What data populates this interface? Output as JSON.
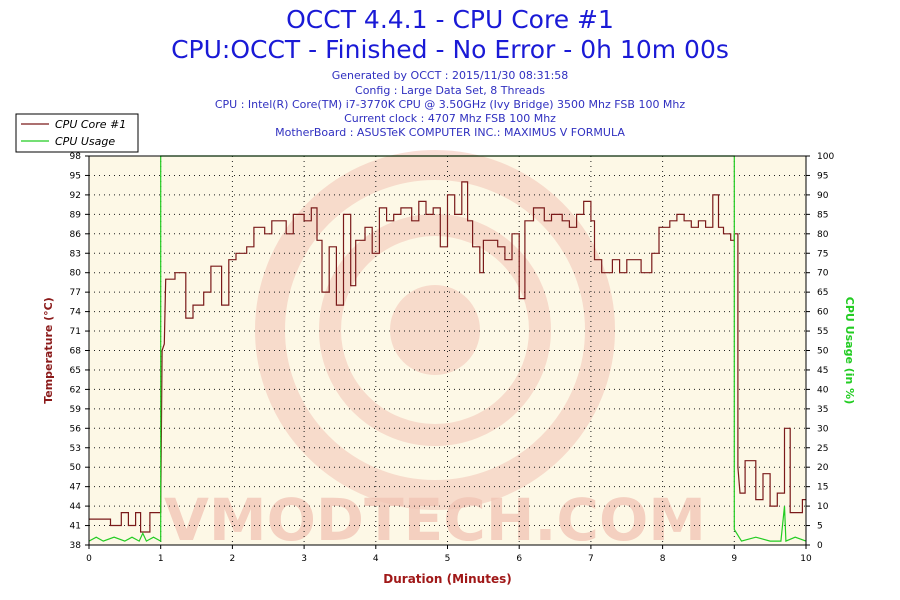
{
  "header": {
    "title": "OCCT 4.4.1 - CPU Core #1",
    "subtitle": "CPU:OCCT - Finished - No Error - 0h 10m 00s",
    "info": [
      "Generated by OCCT : 2015/11/30 08:31:58",
      "Config : Large Data Set, 8 Threads",
      "CPU : Intel(R) Core(TM) i7-3770K CPU @ 3.50GHz (Ivy Bridge) 3500 Mhz FSB 100 Mhz",
      "Current clock : 4707 Mhz FSB 100 Mhz",
      "MotherBoard : ASUSTeK COMPUTER INC.: MAXIMUS V FORMULA"
    ]
  },
  "watermark": "VMODTECH.COM",
  "colors": {
    "temperature": "#7a1a1a",
    "usage": "#22cc22",
    "plot_bg": "#fdf8e6",
    "grid": "#202020",
    "axis_label_left": "#8b1a1a",
    "axis_label_right": "#22cc22",
    "x_axis_label": "#a01818"
  },
  "chart_data": {
    "type": "line",
    "xlabel": "Duration (Minutes)",
    "ylabel": "Temperature (°C)",
    "ylabel_right": "CPU Usage (in %)",
    "xlim": [
      0,
      10
    ],
    "ylim": [
      38,
      98
    ],
    "ylim_right": [
      0,
      100
    ],
    "x_ticks": [
      0,
      1,
      2,
      3,
      4,
      5,
      6,
      7,
      8,
      9,
      10
    ],
    "y_ticks": [
      38,
      41,
      44,
      47,
      50,
      53,
      56,
      59,
      62,
      65,
      68,
      71,
      74,
      77,
      80,
      83,
      86,
      89,
      92,
      95,
      98
    ],
    "y_ticks_right": [
      0,
      5,
      10,
      15,
      20,
      25,
      30,
      35,
      40,
      45,
      50,
      55,
      60,
      65,
      70,
      75,
      80,
      85,
      90,
      95,
      100
    ],
    "grid": true,
    "legend_position": "top-left",
    "series": [
      {
        "name": "CPU Core #1",
        "axis": "left",
        "points": [
          [
            0,
            42
          ],
          [
            0.3,
            42
          ],
          [
            0.3,
            41
          ],
          [
            0.45,
            41
          ],
          [
            0.45,
            43
          ],
          [
            0.55,
            43
          ],
          [
            0.55,
            41
          ],
          [
            0.65,
            41
          ],
          [
            0.65,
            43
          ],
          [
            0.72,
            43
          ],
          [
            0.72,
            40
          ],
          [
            0.85,
            40
          ],
          [
            0.85,
            43
          ],
          [
            1.0,
            43
          ],
          [
            1.02,
            68
          ],
          [
            1.05,
            69
          ],
          [
            1.07,
            79
          ],
          [
            1.2,
            79
          ],
          [
            1.2,
            80
          ],
          [
            1.35,
            80
          ],
          [
            1.35,
            73
          ],
          [
            1.45,
            73
          ],
          [
            1.45,
            75
          ],
          [
            1.6,
            75
          ],
          [
            1.6,
            77
          ],
          [
            1.7,
            77
          ],
          [
            1.7,
            81
          ],
          [
            1.85,
            81
          ],
          [
            1.85,
            75
          ],
          [
            1.95,
            75
          ],
          [
            1.95,
            82
          ],
          [
            2.05,
            82
          ],
          [
            2.05,
            83
          ],
          [
            2.2,
            83
          ],
          [
            2.2,
            84
          ],
          [
            2.3,
            84
          ],
          [
            2.3,
            87
          ],
          [
            2.45,
            87
          ],
          [
            2.45,
            86
          ],
          [
            2.55,
            86
          ],
          [
            2.55,
            88
          ],
          [
            2.75,
            88
          ],
          [
            2.75,
            86
          ],
          [
            2.85,
            86
          ],
          [
            2.85,
            89
          ],
          [
            3.0,
            89
          ],
          [
            3.0,
            88
          ],
          [
            3.1,
            88
          ],
          [
            3.1,
            90
          ],
          [
            3.18,
            90
          ],
          [
            3.18,
            85
          ],
          [
            3.25,
            85
          ],
          [
            3.25,
            77
          ],
          [
            3.35,
            77
          ],
          [
            3.35,
            84
          ],
          [
            3.45,
            84
          ],
          [
            3.45,
            75
          ],
          [
            3.55,
            75
          ],
          [
            3.55,
            89
          ],
          [
            3.65,
            89
          ],
          [
            3.65,
            78
          ],
          [
            3.72,
            78
          ],
          [
            3.72,
            85
          ],
          [
            3.85,
            85
          ],
          [
            3.85,
            87
          ],
          [
            3.95,
            87
          ],
          [
            3.95,
            83
          ],
          [
            4.05,
            83
          ],
          [
            4.05,
            90
          ],
          [
            4.15,
            90
          ],
          [
            4.15,
            88
          ],
          [
            4.25,
            88
          ],
          [
            4.25,
            89
          ],
          [
            4.35,
            89
          ],
          [
            4.35,
            90
          ],
          [
            4.5,
            90
          ],
          [
            4.5,
            88
          ],
          [
            4.6,
            88
          ],
          [
            4.6,
            91
          ],
          [
            4.7,
            91
          ],
          [
            4.7,
            89
          ],
          [
            4.8,
            89
          ],
          [
            4.8,
            90
          ],
          [
            4.9,
            90
          ],
          [
            4.9,
            84
          ],
          [
            5.0,
            84
          ],
          [
            5.0,
            92
          ],
          [
            5.1,
            92
          ],
          [
            5.1,
            89
          ],
          [
            5.2,
            89
          ],
          [
            5.2,
            94
          ],
          [
            5.28,
            94
          ],
          [
            5.28,
            88
          ],
          [
            5.35,
            88
          ],
          [
            5.35,
            84
          ],
          [
            5.45,
            84
          ],
          [
            5.45,
            80
          ],
          [
            5.5,
            80
          ],
          [
            5.5,
            85
          ],
          [
            5.7,
            85
          ],
          [
            5.7,
            84
          ],
          [
            5.8,
            84
          ],
          [
            5.8,
            82
          ],
          [
            5.9,
            82
          ],
          [
            5.9,
            86
          ],
          [
            6.0,
            86
          ],
          [
            6.0,
            76
          ],
          [
            6.08,
            76
          ],
          [
            6.08,
            88
          ],
          [
            6.2,
            88
          ],
          [
            6.2,
            90
          ],
          [
            6.35,
            90
          ],
          [
            6.35,
            88
          ],
          [
            6.45,
            88
          ],
          [
            6.45,
            89
          ],
          [
            6.6,
            89
          ],
          [
            6.6,
            88
          ],
          [
            6.7,
            88
          ],
          [
            6.7,
            87
          ],
          [
            6.8,
            87
          ],
          [
            6.8,
            89
          ],
          [
            6.9,
            89
          ],
          [
            6.9,
            91
          ],
          [
            7.0,
            91
          ],
          [
            7.0,
            88
          ],
          [
            7.05,
            88
          ],
          [
            7.05,
            82
          ],
          [
            7.15,
            82
          ],
          [
            7.15,
            80
          ],
          [
            7.3,
            80
          ],
          [
            7.3,
            82
          ],
          [
            7.4,
            82
          ],
          [
            7.4,
            80
          ],
          [
            7.5,
            80
          ],
          [
            7.5,
            82
          ],
          [
            7.7,
            82
          ],
          [
            7.7,
            80
          ],
          [
            7.85,
            80
          ],
          [
            7.85,
            83
          ],
          [
            7.95,
            83
          ],
          [
            7.95,
            87
          ],
          [
            8.1,
            87
          ],
          [
            8.1,
            88
          ],
          [
            8.2,
            88
          ],
          [
            8.2,
            89
          ],
          [
            8.3,
            89
          ],
          [
            8.3,
            88
          ],
          [
            8.4,
            88
          ],
          [
            8.4,
            87
          ],
          [
            8.5,
            87
          ],
          [
            8.5,
            88
          ],
          [
            8.6,
            88
          ],
          [
            8.6,
            87
          ],
          [
            8.7,
            87
          ],
          [
            8.7,
            92
          ],
          [
            8.78,
            92
          ],
          [
            8.78,
            87
          ],
          [
            8.85,
            87
          ],
          [
            8.85,
            86
          ],
          [
            8.95,
            86
          ],
          [
            8.95,
            85
          ],
          [
            9.0,
            85
          ],
          [
            9.0,
            86
          ],
          [
            9.05,
            86
          ],
          [
            9.05,
            50
          ],
          [
            9.08,
            46
          ],
          [
            9.15,
            46
          ],
          [
            9.15,
            51
          ],
          [
            9.3,
            51
          ],
          [
            9.3,
            45
          ],
          [
            9.4,
            45
          ],
          [
            9.4,
            49
          ],
          [
            9.5,
            49
          ],
          [
            9.5,
            44
          ],
          [
            9.6,
            44
          ],
          [
            9.6,
            46
          ],
          [
            9.7,
            46
          ],
          [
            9.7,
            56
          ],
          [
            9.78,
            56
          ],
          [
            9.78,
            43
          ],
          [
            9.95,
            43
          ],
          [
            9.95,
            45
          ],
          [
            10.0,
            45
          ]
        ]
      },
      {
        "name": "CPU Usage",
        "axis": "right",
        "points": [
          [
            0,
            1
          ],
          [
            0.1,
            2
          ],
          [
            0.2,
            1
          ],
          [
            0.35,
            2
          ],
          [
            0.5,
            1
          ],
          [
            0.6,
            2
          ],
          [
            0.7,
            1
          ],
          [
            0.75,
            3
          ],
          [
            0.8,
            1
          ],
          [
            0.9,
            2
          ],
          [
            1.0,
            1
          ],
          [
            1.0,
            100
          ],
          [
            9.0,
            100
          ],
          [
            9.0,
            4
          ],
          [
            9.1,
            1
          ],
          [
            9.3,
            2
          ],
          [
            9.5,
            1
          ],
          [
            9.65,
            1
          ],
          [
            9.7,
            10
          ],
          [
            9.72,
            1
          ],
          [
            9.85,
            2
          ],
          [
            10.0,
            1
          ]
        ]
      }
    ]
  }
}
